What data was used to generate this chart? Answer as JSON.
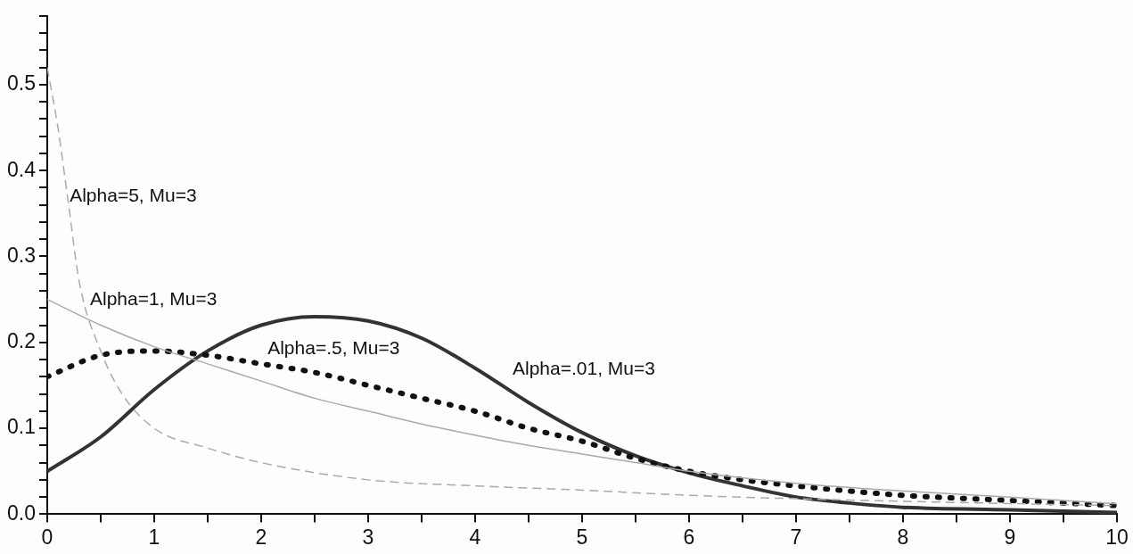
{
  "chart_data": {
    "type": "line",
    "xlim": [
      0,
      10
    ],
    "ylim": [
      0,
      0.58
    ],
    "xticks": [
      0,
      {
        "value": 0.5,
        "label": null
      },
      1,
      {
        "value": 1.5,
        "label": null
      },
      2,
      {
        "value": 2.5,
        "label": null
      },
      3,
      {
        "value": 3.5,
        "label": null
      },
      4,
      {
        "value": 4.5,
        "label": null
      },
      5,
      {
        "value": 5.5,
        "label": null
      },
      6,
      {
        "value": 6.5,
        "label": null
      },
      7,
      {
        "value": 7.5,
        "label": null
      },
      8,
      {
        "value": 8.5,
        "label": null
      },
      9,
      {
        "value": 9.5,
        "label": null
      },
      10
    ],
    "yticks": [
      {
        "value": 0,
        "label": "0.0"
      },
      {
        "value": 0.02,
        "label": null
      },
      {
        "value": 0.04,
        "label": null
      },
      {
        "value": 0.06,
        "label": null
      },
      {
        "value": 0.08,
        "label": null
      },
      0.1,
      {
        "value": 0.12,
        "label": null
      },
      {
        "value": 0.14,
        "label": null
      },
      {
        "value": 0.16,
        "label": null
      },
      {
        "value": 0.18,
        "label": null
      },
      0.2,
      {
        "value": 0.22,
        "label": null
      },
      {
        "value": 0.24,
        "label": null
      },
      {
        "value": 0.26,
        "label": null
      },
      {
        "value": 0.28,
        "label": null
      },
      0.3,
      {
        "value": 0.32,
        "label": null
      },
      {
        "value": 0.34,
        "label": null
      },
      {
        "value": 0.36,
        "label": null
      },
      {
        "value": 0.38,
        "label": null
      },
      0.4,
      {
        "value": 0.42,
        "label": null
      },
      {
        "value": 0.44,
        "label": null
      },
      {
        "value": 0.46,
        "label": null
      },
      {
        "value": 0.48,
        "label": null
      },
      0.5,
      {
        "value": 0.52,
        "label": null
      },
      {
        "value": 0.54,
        "label": null
      },
      {
        "value": 0.56,
        "label": null
      },
      {
        "value": 0.58,
        "label": null
      }
    ],
    "grid": false,
    "legend": false,
    "marker": "none",
    "series": [
      {
        "color": "#aaaaaa",
        "line_style": "dashed",
        "x": [
          0,
          0.1,
          0.2,
          0.3,
          0.5,
          0.7,
          1,
          1.5,
          2,
          3,
          4,
          5,
          6,
          7,
          8,
          10
        ],
        "values": [
          0.52,
          0.45,
          0.36,
          0.27,
          0.19,
          0.14,
          0.1,
          0.077,
          0.06,
          0.04,
          0.033,
          0.028,
          0.022,
          0.018,
          0.015,
          0.01
        ]
      },
      {
        "color": "#aaaaaa",
        "line_style": "solid",
        "x": [
          0,
          0.5,
          1,
          1.5,
          2,
          2.5,
          3,
          3.5,
          4,
          4.5,
          5,
          5.5,
          6,
          7,
          8,
          9,
          10
        ],
        "values": [
          0.25,
          0.22,
          0.195,
          0.175,
          0.155,
          0.135,
          0.12,
          0.105,
          0.092,
          0.08,
          0.07,
          0.06,
          0.05,
          0.036,
          0.027,
          0.02,
          0.012
        ]
      },
      {
        "color": "#111111",
        "line_style": "dotted",
        "x": [
          0,
          0.5,
          1,
          1.5,
          2,
          2.5,
          3,
          3.5,
          4,
          4.5,
          5,
          5.5,
          6,
          6.5,
          7,
          7.5,
          8,
          9,
          10
        ],
        "values": [
          0.16,
          0.185,
          0.19,
          0.185,
          0.175,
          0.165,
          0.15,
          0.135,
          0.12,
          0.1,
          0.085,
          0.065,
          0.05,
          0.04,
          0.033,
          0.027,
          0.022,
          0.016,
          0.01
        ]
      },
      {
        "color": "#333333",
        "line_style": "solid",
        "x": [
          0,
          0.5,
          1,
          1.5,
          2,
          2.5,
          3,
          3.5,
          4,
          4.5,
          5,
          5.5,
          6,
          6.5,
          7,
          7.5,
          8,
          9,
          10
        ],
        "values": [
          0.05,
          0.09,
          0.145,
          0.19,
          0.22,
          0.23,
          0.225,
          0.205,
          0.17,
          0.13,
          0.095,
          0.068,
          0.048,
          0.033,
          0.02,
          0.013,
          0.008,
          0.005,
          0.002
        ]
      }
    ],
    "annotations": [
      "Alpha=5, Mu=3",
      "Alpha=1, Mu=3",
      "Alpha=.5, Mu=3",
      "Alpha=.01, Mu=3"
    ]
  }
}
